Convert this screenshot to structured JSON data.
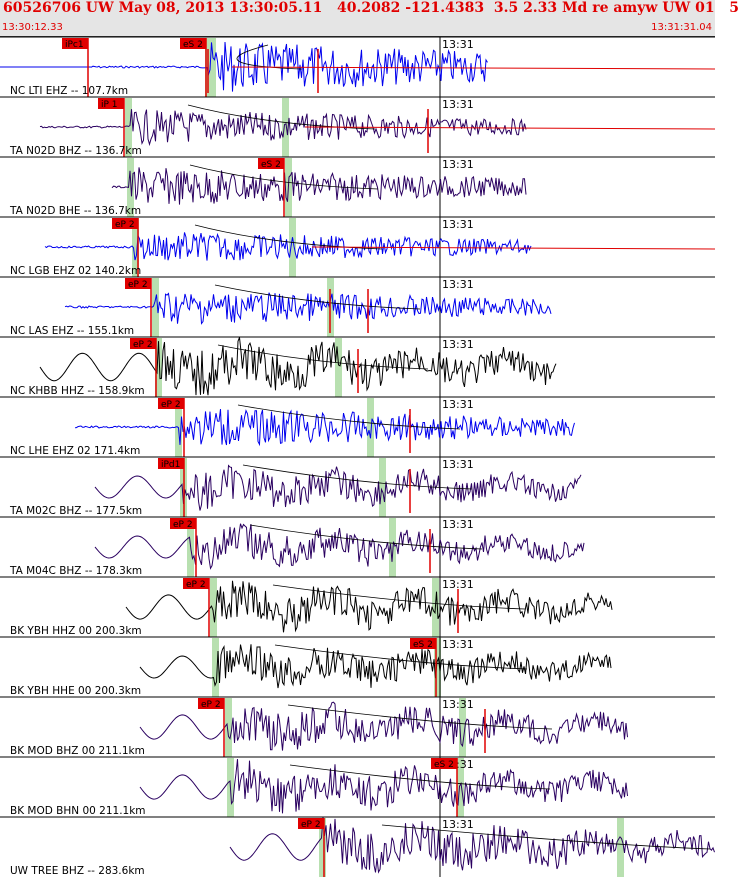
{
  "header": {
    "title": "60526706 UW May 08, 2013 13:30:05.11   40.2082 -121.4383  3.5 2.33 Md re amyw UW 01   5",
    "start_time": "13:30:12.33",
    "end_time": "13:31:31.04"
  },
  "colors": {
    "header_bg": "#e5e5e5",
    "title": "#e00000",
    "blue_trace": "#0000ee",
    "purple_trace": "#2a0060",
    "black_trace": "#000000",
    "pick_box": "#e00000",
    "arrival_band": "#b8e0b0",
    "theoretical_curve": "#000000",
    "coda_curve": "#e00000"
  },
  "time_marker_label": "13:31",
  "traces": [
    {
      "label": "NC LTI EHZ -- 107.7km",
      "color": "blue",
      "picks": [
        "iPc1",
        "eS 2"
      ]
    },
    {
      "label": "TA N02D BHZ -- 136.7km",
      "color": "purple",
      "picks": [
        "iP 1"
      ]
    },
    {
      "label": "TA N02D BHE -- 136.7km",
      "color": "purple",
      "picks": [
        "eS 2"
      ]
    },
    {
      "label": "NC LGB EHZ 02 140.2km",
      "color": "blue",
      "picks": [
        "eP 2"
      ]
    },
    {
      "label": "NC LAS EHZ -- 155.1km",
      "color": "blue",
      "picks": [
        "eP 2"
      ]
    },
    {
      "label": "NC KHBB HHZ -- 158.9km",
      "color": "black",
      "picks": [
        "eP 2"
      ]
    },
    {
      "label": "NC LHE EHZ 02 171.4km",
      "color": "blue",
      "picks": [
        "eP 2"
      ]
    },
    {
      "label": "TA M02C BHZ -- 177.5km",
      "color": "purple",
      "picks": [
        "iPd1"
      ]
    },
    {
      "label": "TA M04C BHZ -- 178.3km",
      "color": "purple",
      "picks": [
        "eP 2"
      ]
    },
    {
      "label": "BK YBH HHZ 00 200.3km",
      "color": "black",
      "picks": [
        "eP 2"
      ]
    },
    {
      "label": "BK YBH HHE 00 200.3km",
      "color": "black",
      "picks": [
        "eS 2"
      ]
    },
    {
      "label": "BK MOD BHZ 00 211.1km",
      "color": "purple",
      "picks": [
        "eP 2"
      ]
    },
    {
      "label": "BK MOD BHN 00 211.1km",
      "color": "purple",
      "picks": [
        "eS 2"
      ]
    },
    {
      "label": "UW TREE BHZ -- 283.6km",
      "color": "purple",
      "picks": [
        "eP 2"
      ]
    }
  ]
}
